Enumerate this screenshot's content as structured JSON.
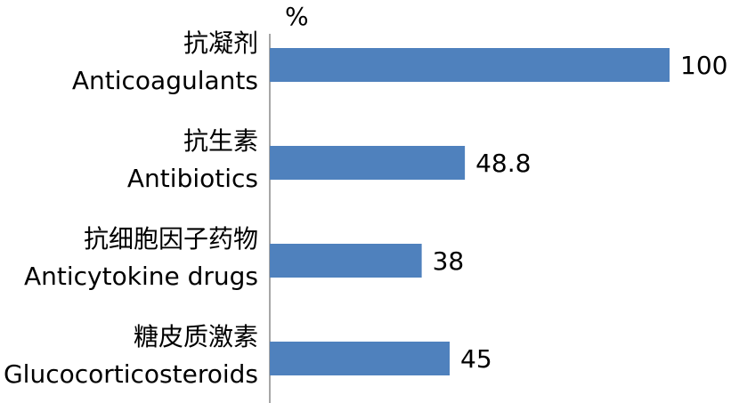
{
  "chart_data": {
    "type": "bar",
    "orientation": "horizontal",
    "unit_label": "%",
    "categories": [
      {
        "zh": "抗凝剂",
        "en": "Anticoagulants"
      },
      {
        "zh": "抗生素",
        "en": "Antibiotics"
      },
      {
        "zh": "抗细胞因子药物",
        "en": "Anticytokine drugs"
      },
      {
        "zh": "糖皮质激素",
        "en": "Glucocorticosteroids"
      }
    ],
    "values": [
      100,
      48.8,
      38,
      45
    ],
    "color": "#4f81bd",
    "xlim": [
      0,
      100
    ]
  }
}
